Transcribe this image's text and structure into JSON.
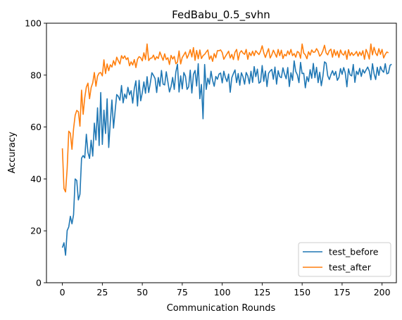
{
  "chart_data": {
    "type": "line",
    "title": "FedBabu_0.5_svhn",
    "xlabel": "Communication Rounds",
    "ylabel": "Accuracy",
    "xlim": [
      -9.95,
      208.95
    ],
    "ylim": [
      0,
      100
    ],
    "xticks": [
      0,
      25,
      50,
      75,
      100,
      125,
      150,
      175,
      200
    ],
    "yticks": [
      0,
      20,
      40,
      60,
      80,
      100
    ],
    "grid": false,
    "legend_position": "lower-right",
    "series": [
      {
        "name": "test_before",
        "color": "#1f77b4",
        "values": [
          13.5,
          15.4,
          10.6,
          20.1,
          21.5,
          25.6,
          22.7,
          26.2,
          40.0,
          39.4,
          31.9,
          34.1,
          48.0,
          49.0,
          48.1,
          57.2,
          50.2,
          47.9,
          54.9,
          48.8,
          61.5,
          55.0,
          67.4,
          52.9,
          73.3,
          53.3,
          66.5,
          57.5,
          70.9,
          52.1,
          62.0,
          70.4,
          59.6,
          66.2,
          72.5,
          71.8,
          70.3,
          76.0,
          69.3,
          72.7,
          71.0,
          75.3,
          72.4,
          74.0,
          69.2,
          74.8,
          77.8,
          68.1,
          78.0,
          70.1,
          73.2,
          77.4,
          73.0,
          79.4,
          73.3,
          76.9,
          80.9,
          79.9,
          78.7,
          73.3,
          79.1,
          75.7,
          81.8,
          76.5,
          76.2,
          81.3,
          77.4,
          73.5,
          75.6,
          79.1,
          74.5,
          81.2,
          84.2,
          73.5,
          79.7,
          74.7,
          81.0,
          79.6,
          74.5,
          75.5,
          81.9,
          73.1,
          80.3,
          81.8,
          75.8,
          84.4,
          70.9,
          76.4,
          63.2,
          84.1,
          74.5,
          78.8,
          76.5,
          81.5,
          77.9,
          75.7,
          79.5,
          78.4,
          80.4,
          80.8,
          77.0,
          81.5,
          79.0,
          77.5,
          80.4,
          73.4,
          79.0,
          80.6,
          82.0,
          77.1,
          80.6,
          76.1,
          80.9,
          79.3,
          76.5,
          81.0,
          79.7,
          76.7,
          81.5,
          77.2,
          83.3,
          79.4,
          82.3,
          76.9,
          77.4,
          83.7,
          77.6,
          81.6,
          75.6,
          80.7,
          81.6,
          82.2,
          78.4,
          83.1,
          76.5,
          81.7,
          79.4,
          79.0,
          82.8,
          80.4,
          78.6,
          82.9,
          75.6,
          80.9,
          78.0,
          85.5,
          81.4,
          80.1,
          77.1,
          84.9,
          80.6,
          80.7,
          75.1,
          79.4,
          77.5,
          82.1,
          78.8,
          84.5,
          79.0,
          83.0,
          77.1,
          81.1,
          75.9,
          79.6,
          85.1,
          84.6,
          79.8,
          78.3,
          80.2,
          81.7,
          79.9,
          81.4,
          78.0,
          79.1,
          82.5,
          80.3,
          82.9,
          80.8,
          75.5,
          82.4,
          80.1,
          79.7,
          84.1,
          77.2,
          81.5,
          80.2,
          82.6,
          79.5,
          82.1,
          80.8,
          82.0,
          83.1,
          81.6,
          78.2,
          84.4,
          80.5,
          78.3,
          83.0,
          79.9,
          83.3,
          81.8,
          81.1,
          84.4,
          80.5,
          80.8,
          83.8,
          84.2
        ]
      },
      {
        "name": "test_after",
        "color": "#ff7f0e",
        "values": [
          51.8,
          36.3,
          35.0,
          44.0,
          58.4,
          57.6,
          51.4,
          59.3,
          64.5,
          66.4,
          65.9,
          60.3,
          74.2,
          64.9,
          71.3,
          75.4,
          76.9,
          70.9,
          75.2,
          77.0,
          81.0,
          75.7,
          79.6,
          80.8,
          81.0,
          79.7,
          85.9,
          80.6,
          84.3,
          81.7,
          84.0,
          83.1,
          85.6,
          83.8,
          86.9,
          85.5,
          84.3,
          87.5,
          86.4,
          87.4,
          86.0,
          86.7,
          83.6,
          85.1,
          83.9,
          86.0,
          82.9,
          86.1,
          87.1,
          86.7,
          85.5,
          88.6,
          86.0,
          92.0,
          85.6,
          86.5,
          86.6,
          87.7,
          85.9,
          87.1,
          86.4,
          88.9,
          87.3,
          85.7,
          88.2,
          86.0,
          86.7,
          84.1,
          87.6,
          86.2,
          87.2,
          84.4,
          85.0,
          89.3,
          84.3,
          86.8,
          87.8,
          88.9,
          86.5,
          87.9,
          89.8,
          87.0,
          90.6,
          85.7,
          89.5,
          86.3,
          89.7,
          86.4,
          87.5,
          88.0,
          88.9,
          89.7,
          86.1,
          87.4,
          85.3,
          88.3,
          86.7,
          89.4,
          89.4,
          89.7,
          88.7,
          86.1,
          87.2,
          88.2,
          89.2,
          86.6,
          88.0,
          86.0,
          88.8,
          89.9,
          85.8,
          88.6,
          89.4,
          88.5,
          88.0,
          89.9,
          86.1,
          88.7,
          87.5,
          89.2,
          87.5,
          89.4,
          88.6,
          87.9,
          89.2,
          91.3,
          88.6,
          86.8,
          88.6,
          90.2,
          86.6,
          87.8,
          89.6,
          88.3,
          86.9,
          89.9,
          87.5,
          89.6,
          86.4,
          88.0,
          87.4,
          89.3,
          87.9,
          89.9,
          87.5,
          88.3,
          86.9,
          89.1,
          88.7,
          86.5,
          92.0,
          88.5,
          87.8,
          86.3,
          89.0,
          87.7,
          89.7,
          88.8,
          88.9,
          90.2,
          89.2,
          87.3,
          88.0,
          89.4,
          91.5,
          88.6,
          87.8,
          89.4,
          90.0,
          86.9,
          89.8,
          87.6,
          89.2,
          86.8,
          89.7,
          88.2,
          87.7,
          89.3,
          86.1,
          89.8,
          87.5,
          88.7,
          87.6,
          88.2,
          89.1,
          87.3,
          88.9,
          87.6,
          89.4,
          86.1,
          89.9,
          88.4,
          86.2,
          92.0,
          87.8,
          90.7,
          88.5,
          87.5,
          90.2,
          88.0,
          89.9,
          86.6,
          88.0,
          88.9,
          88.6
        ]
      }
    ]
  }
}
